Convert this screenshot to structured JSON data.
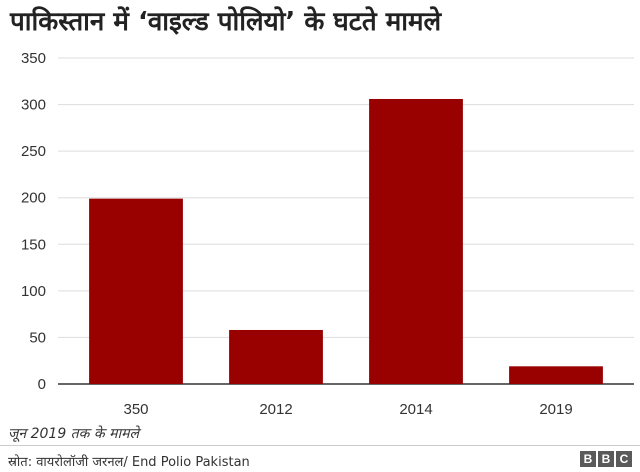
{
  "title": "पाकिस्तान में ‘वाइल्ड पोलियो’ के घटते मामले",
  "note": "जून 2019 तक के मामले",
  "source": "स्रोत: वायरोलॉजी जरनल/ End Polio Pakistan",
  "logo": [
    "B",
    "B",
    "C"
  ],
  "colors": {
    "bar": "#990000",
    "grid": "#dddddd",
    "axis": "#333333"
  },
  "chart_data": {
    "type": "bar",
    "categories": [
      "350",
      "2012",
      "2014",
      "2019"
    ],
    "values": [
      199,
      58,
      306,
      19
    ],
    "ylim": [
      0,
      350
    ],
    "yticks": [
      0,
      50,
      100,
      150,
      200,
      250,
      300,
      350
    ],
    "grid": true,
    "xlabel": "",
    "ylabel": ""
  }
}
